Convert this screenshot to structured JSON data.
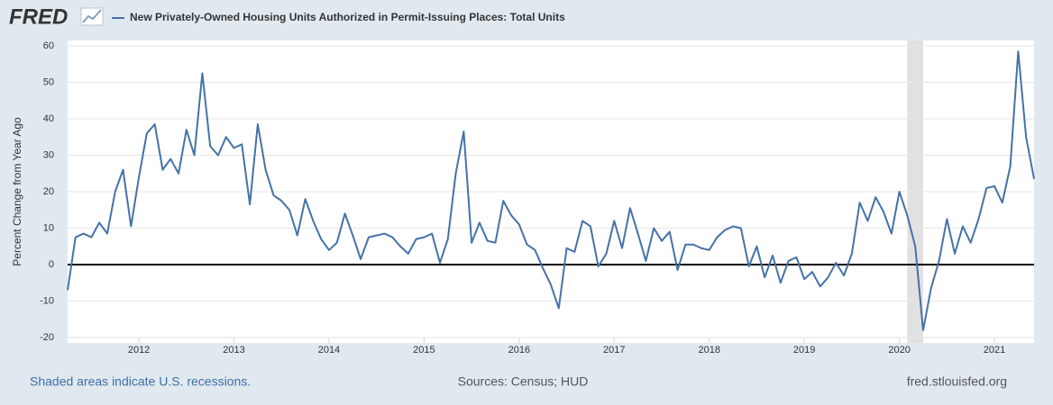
{
  "logo": "FRED",
  "chart_data": {
    "type": "line",
    "ylabel": "Percent Change from Year Ago",
    "x": [
      2011.25,
      2011.333,
      2011.417,
      2011.5,
      2011.583,
      2011.667,
      2011.75,
      2011.833,
      2011.917,
      2012,
      2012.083,
      2012.167,
      2012.25,
      2012.333,
      2012.417,
      2012.5,
      2012.583,
      2012.667,
      2012.75,
      2012.833,
      2012.917,
      2013,
      2013.083,
      2013.167,
      2013.25,
      2013.333,
      2013.417,
      2013.5,
      2013.583,
      2013.667,
      2013.75,
      2013.833,
      2013.917,
      2014,
      2014.083,
      2014.167,
      2014.25,
      2014.333,
      2014.417,
      2014.5,
      2014.583,
      2014.667,
      2014.75,
      2014.833,
      2014.917,
      2015,
      2015.083,
      2015.167,
      2015.25,
      2015.333,
      2015.417,
      2015.5,
      2015.583,
      2015.667,
      2015.75,
      2015.833,
      2015.917,
      2016,
      2016.083,
      2016.167,
      2016.25,
      2016.333,
      2016.417,
      2016.5,
      2016.583,
      2016.667,
      2016.75,
      2016.833,
      2016.917,
      2017,
      2017.083,
      2017.167,
      2017.25,
      2017.333,
      2017.417,
      2017.5,
      2017.583,
      2017.667,
      2017.75,
      2017.833,
      2017.917,
      2018,
      2018.083,
      2018.167,
      2018.25,
      2018.333,
      2018.417,
      2018.5,
      2018.583,
      2018.667,
      2018.75,
      2018.833,
      2018.917,
      2019,
      2019.083,
      2019.167,
      2019.25,
      2019.333,
      2019.417,
      2019.5,
      2019.583,
      2019.667,
      2019.75,
      2019.833,
      2019.917,
      2020,
      2020.083,
      2020.167,
      2020.25,
      2020.333,
      2020.417,
      2020.5,
      2020.583,
      2020.667,
      2020.75,
      2020.833,
      2020.917,
      2021,
      2021.083,
      2021.167,
      2021.25,
      2021.333,
      2021.417
    ],
    "series": [
      {
        "name": "New Privately-Owned Housing Units Authorized in Permit-Issuing Places: Total Units",
        "color": "#4572a7",
        "values": [
          -7,
          7.5,
          8.5,
          7.5,
          11.5,
          8.5,
          20,
          26,
          10.5,
          24,
          36,
          38.5,
          26,
          29,
          25,
          37,
          30,
          52.5,
          32.5,
          30,
          35,
          32,
          33,
          16.5,
          38.5,
          26,
          19,
          17.5,
          15,
          8,
          18,
          12,
          7,
          4,
          6,
          14,
          8,
          1.5,
          7.5,
          8,
          8.5,
          7.5,
          5,
          3,
          7,
          7.5,
          8.5,
          0.5,
          7,
          25,
          36.5,
          6,
          11.5,
          6.5,
          6,
          17.5,
          13.5,
          11,
          5.5,
          4,
          -1,
          -5.5,
          -12,
          4.5,
          3.5,
          12,
          10.5,
          -0.5,
          3,
          12,
          4.5,
          15.5,
          8.5,
          1,
          10,
          6.5,
          9,
          -1.5,
          5.5,
          5.5,
          4.5,
          4,
          7.5,
          9.5,
          10.5,
          10,
          -0.5,
          5,
          -3.5,
          2.5,
          -5,
          1,
          2,
          -4,
          -2,
          -6,
          -3.5,
          0.5,
          -3,
          3,
          17,
          12,
          18.5,
          14.5,
          8.5,
          20,
          13.5,
          5,
          -18,
          -6.5,
          1,
          12.5,
          3,
          10.5,
          6,
          12.5,
          21,
          21.5,
          17,
          27,
          58.5,
          35,
          23.5
        ]
      }
    ],
    "xlim": [
      2011.25,
      2021.417
    ],
    "xticks": [
      2012,
      2013,
      2014,
      2015,
      2016,
      2017,
      2018,
      2019,
      2020,
      2021
    ],
    "ylim": [
      -20,
      60
    ],
    "yticks": [
      -20,
      -10,
      0,
      10,
      20,
      30,
      40,
      50,
      60
    ],
    "grid": true,
    "recessions": [
      [
        2020.083,
        2020.25
      ]
    ],
    "recession_note": "Shaded areas indicate U.S. recessions.",
    "source": "Sources: Census; HUD",
    "site": "fred.stlouisfed.org"
  }
}
